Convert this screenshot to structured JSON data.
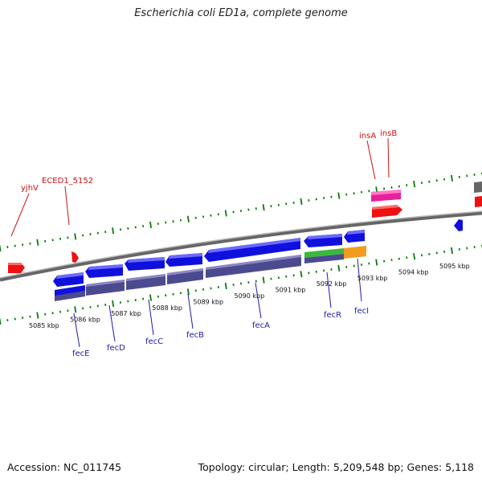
{
  "title": "Escherichia coli ED1a, complete genome",
  "footer": {
    "accession": "Accession: NC_011745",
    "summary": "Topology: circular; Length: 5,209,548 bp; Genes: 5,118"
  },
  "colors": {
    "axis": "#888888",
    "tick": "#0a7a0a",
    "label_red": "#cc1111",
    "label_blue": "#1a1aaa",
    "cds_blue": "#1010dd",
    "cds_purple": "#4c4a8f",
    "cds_green": "#3cb83c",
    "cds_orange": "#f39b1f",
    "pink": "#e8209a",
    "red": "#ee1111",
    "gray": "#666666"
  },
  "scale_labels": [
    {
      "kbp": 5085,
      "text": "5085 kbp"
    },
    {
      "kbp": 5086,
      "text": "5086 kbp"
    },
    {
      "kbp": 5087,
      "text": "5087 kbp"
    },
    {
      "kbp": 5088,
      "text": "5088 kbp"
    },
    {
      "kbp": 5089,
      "text": "5089 kbp"
    },
    {
      "kbp": 5090,
      "text": "5090 kbp"
    },
    {
      "kbp": 5091,
      "text": "5091 kbp"
    },
    {
      "kbp": 5092,
      "text": "5092 kbp"
    },
    {
      "kbp": 5093,
      "text": "5093 kbp"
    },
    {
      "kbp": 5094,
      "text": "5094 kbp"
    },
    {
      "kbp": 5095,
      "text": "5095 kbp"
    }
  ],
  "genes_top": [
    {
      "label": "yjhV"
    },
    {
      "label": "ECED1_5152"
    },
    {
      "label": "insA"
    },
    {
      "label": "insB"
    }
  ],
  "genes_bottom": [
    {
      "label": "fecE"
    },
    {
      "label": "fecD"
    },
    {
      "label": "fecC"
    },
    {
      "label": "fecB"
    },
    {
      "label": "fecA"
    },
    {
      "label": "fecR"
    },
    {
      "label": "fecI"
    }
  ]
}
